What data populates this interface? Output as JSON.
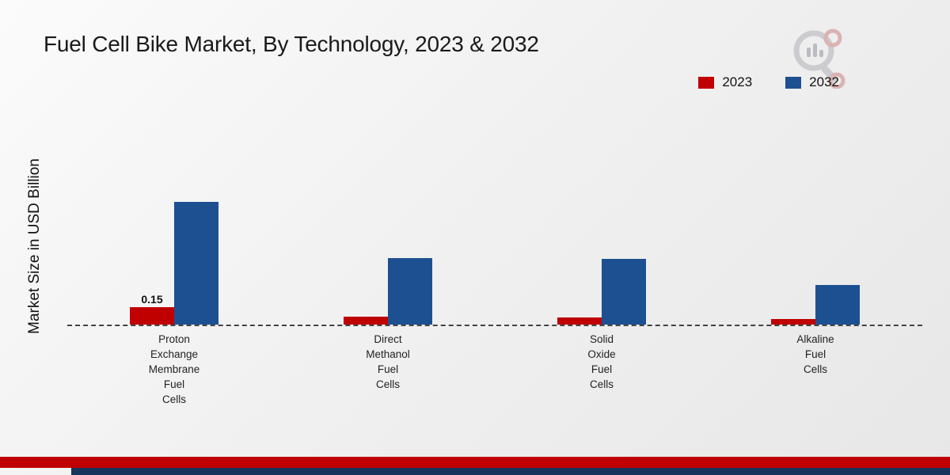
{
  "title": "Fuel Cell Bike Market, By Technology, 2023 & 2032",
  "y_axis_label": "Market Size in USD Billion",
  "legend": [
    {
      "label": "2023",
      "color": "#c00000"
    },
    {
      "label": "2032",
      "color": "#1d5091"
    }
  ],
  "colors": {
    "accent_red": "#c00000",
    "accent_blue": "#1d5091",
    "footer_red": "#c00000",
    "footer_blue": "#16365c"
  },
  "chart_data": {
    "type": "bar",
    "title": "Fuel Cell Bike Market, By Technology, 2023 & 2032",
    "ylabel": "Market Size in USD Billion",
    "xlabel": "",
    "ylim": [
      0,
      1.9
    ],
    "grid": false,
    "legend_position": "top-right",
    "categories": [
      "Proton\nExchange\nMembrane\nFuel\nCells",
      "Direct\nMethanol\nFuel\nCells",
      "Solid\nOxide\nFuel\nCells",
      "Alkaline\nFuel\nCells"
    ],
    "series": [
      {
        "name": "2023",
        "color": "#c00000",
        "values": [
          0.15,
          0.07,
          0.06,
          0.05
        ]
      },
      {
        "name": "2032",
        "color": "#1d5091",
        "values": [
          1.05,
          0.57,
          0.56,
          0.34
        ]
      }
    ],
    "value_labels": {
      "2023": [
        "0.15",
        "",
        "",
        ""
      ],
      "2032": [
        "",
        "",
        "",
        ""
      ]
    },
    "baseline_style": "dashed"
  }
}
